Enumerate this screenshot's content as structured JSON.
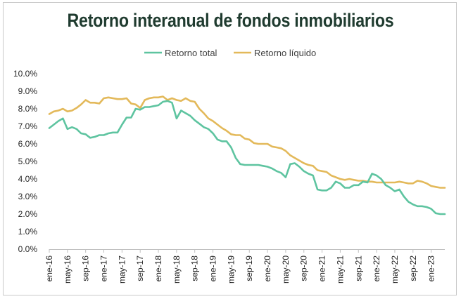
{
  "chart_data": {
    "type": "line",
    "title": "Retorno interanual de fondos inmobiliarios",
    "xlabel": "",
    "ylabel": "",
    "ylim": [
      0,
      10
    ],
    "y_ticks": [
      "0.0%",
      "1.0%",
      "2.0%",
      "3.0%",
      "4.0%",
      "5.0%",
      "6.0%",
      "7.0%",
      "8.0%",
      "9.0%",
      "10.0%"
    ],
    "x_tick_labels": [
      "ene-16",
      "may-16",
      "sep-16",
      "ene-17",
      "may-17",
      "sep-17",
      "ene-18",
      "may-18",
      "sep-18",
      "ene-19",
      "may-19",
      "sep-19",
      "ene-20",
      "may-20",
      "sep-20",
      "ene-21",
      "may-21",
      "sep-21",
      "ene-22",
      "may-22",
      "sep-22",
      "ene-23"
    ],
    "x": [
      "ene-16",
      "feb-16",
      "mar-16",
      "abr-16",
      "may-16",
      "jun-16",
      "jul-16",
      "ago-16",
      "sep-16",
      "oct-16",
      "nov-16",
      "dic-16",
      "ene-17",
      "feb-17",
      "mar-17",
      "abr-17",
      "may-17",
      "jun-17",
      "jul-17",
      "ago-17",
      "sep-17",
      "oct-17",
      "nov-17",
      "dic-17",
      "ene-18",
      "feb-18",
      "mar-18",
      "abr-18",
      "may-18",
      "jun-18",
      "jul-18",
      "ago-18",
      "sep-18",
      "oct-18",
      "nov-18",
      "dic-18",
      "ene-19",
      "feb-19",
      "mar-19",
      "abr-19",
      "may-19",
      "jun-19",
      "jul-19",
      "ago-19",
      "sep-19",
      "oct-19",
      "nov-19",
      "dic-19",
      "ene-20",
      "feb-20",
      "mar-20",
      "abr-20",
      "may-20",
      "jun-20",
      "jul-20",
      "ago-20",
      "sep-20",
      "oct-20",
      "nov-20",
      "dic-20",
      "ene-21",
      "feb-21",
      "mar-21",
      "abr-21",
      "may-21",
      "jun-21",
      "jul-21",
      "ago-21",
      "sep-21",
      "oct-21",
      "nov-21",
      "dic-21",
      "ene-22",
      "feb-22",
      "mar-22",
      "abr-22",
      "may-22",
      "jun-22",
      "jul-22",
      "ago-22",
      "sep-22",
      "oct-22",
      "nov-22",
      "dic-22",
      "ene-23",
      "feb-23",
      "mar-23",
      "abr-23"
    ],
    "legend_position": "top",
    "grid": false,
    "series": [
      {
        "name": "Retorno total",
        "color": "#5ec4a0",
        "values": [
          6.9,
          7.1,
          7.3,
          7.45,
          6.85,
          6.95,
          6.85,
          6.6,
          6.55,
          6.35,
          6.4,
          6.5,
          6.5,
          6.6,
          6.65,
          6.65,
          7.1,
          7.5,
          7.5,
          8.0,
          7.95,
          8.1,
          8.1,
          8.15,
          8.2,
          8.4,
          8.45,
          8.35,
          7.45,
          7.9,
          7.75,
          7.6,
          7.35,
          7.15,
          6.95,
          6.85,
          6.6,
          6.25,
          6.15,
          6.15,
          5.8,
          5.2,
          4.85,
          4.8,
          4.8,
          4.8,
          4.8,
          4.75,
          4.7,
          4.6,
          4.45,
          4.35,
          4.1,
          4.85,
          4.9,
          4.7,
          4.45,
          4.3,
          4.2,
          3.4,
          3.35,
          3.35,
          3.5,
          3.85,
          3.75,
          3.5,
          3.5,
          3.65,
          3.65,
          3.85,
          3.8,
          4.3,
          4.2,
          4.0,
          3.65,
          3.5,
          3.3,
          3.4,
          3.0,
          2.7,
          2.55,
          2.45,
          2.45,
          2.4,
          2.3,
          2.05,
          2.0,
          2.0
        ]
      },
      {
        "name": "Retorno líquido",
        "color": "#e3b95a",
        "values": [
          7.7,
          7.85,
          7.9,
          8.0,
          7.85,
          7.9,
          8.05,
          8.25,
          8.5,
          8.35,
          8.35,
          8.3,
          8.6,
          8.65,
          8.6,
          8.55,
          8.55,
          8.6,
          8.3,
          8.25,
          8.05,
          8.5,
          8.6,
          8.65,
          8.65,
          8.7,
          8.5,
          8.6,
          8.5,
          8.45,
          8.6,
          8.45,
          8.4,
          8.0,
          7.75,
          7.45,
          7.3,
          7.1,
          6.9,
          6.75,
          6.55,
          6.5,
          6.5,
          6.3,
          6.25,
          6.05,
          6.0,
          6.0,
          6.0,
          5.85,
          5.8,
          5.75,
          5.6,
          5.35,
          5.2,
          5.05,
          4.9,
          4.8,
          4.75,
          4.5,
          4.45,
          4.4,
          4.2,
          4.1,
          4.0,
          3.95,
          4.0,
          3.95,
          3.9,
          3.9,
          3.85,
          3.85,
          3.8,
          3.8,
          3.8,
          3.8,
          3.8,
          3.85,
          3.8,
          3.75,
          3.75,
          3.9,
          3.85,
          3.75,
          3.6,
          3.55,
          3.5,
          3.5
        ]
      }
    ]
  }
}
